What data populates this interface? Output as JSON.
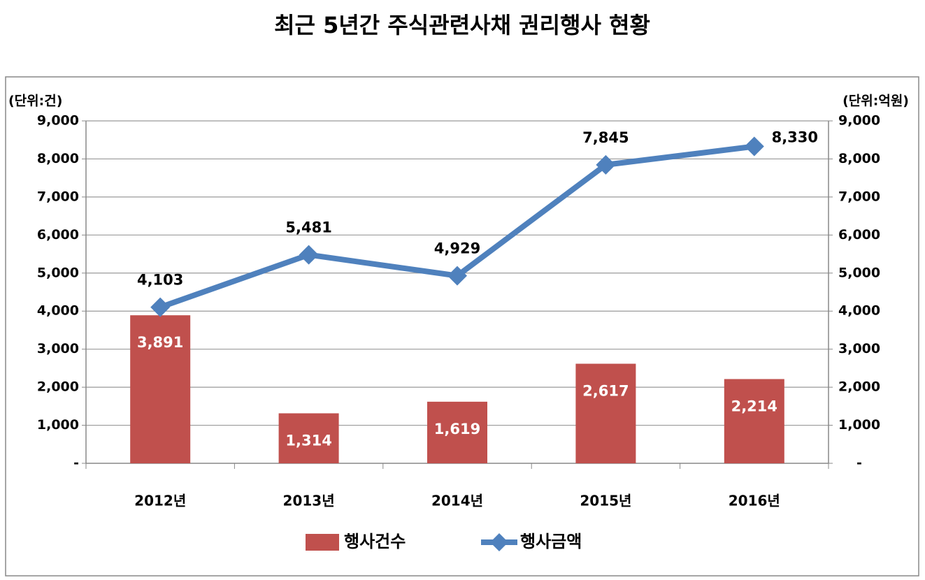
{
  "chart_data": {
    "type": "combo",
    "title": "최근 5년간 주식관련사채 권리행사 현황",
    "y_label": "(단위:건)",
    "y2_label": "(단위:억원)",
    "categories": [
      "2012년",
      "2013년",
      "2014년",
      "2015년",
      "2016년"
    ],
    "series": [
      {
        "name": "행사건수",
        "type": "bar",
        "color": "#c0504d",
        "axis": "y",
        "values": [
          3891,
          1314,
          1619,
          2617,
          2214
        ],
        "value_labels": [
          "3,891",
          "1,314",
          "1,619",
          "2,617",
          "2,214"
        ]
      },
      {
        "name": "행사금액",
        "type": "line",
        "color": "#4f81bd",
        "axis": "y2",
        "values": [
          4103,
          5481,
          4929,
          7845,
          8330
        ],
        "value_labels": [
          "4,103",
          "5,481",
          "4,929",
          "7,845",
          "8,330"
        ]
      }
    ],
    "ylim": [
      0,
      9000
    ],
    "yticks": [
      {
        "value": 0,
        "label": "-"
      },
      {
        "value": 1000,
        "label": "1,000"
      },
      {
        "value": 2000,
        "label": "2,000"
      },
      {
        "value": 3000,
        "label": "3,000"
      },
      {
        "value": 4000,
        "label": "4,000"
      },
      {
        "value": 5000,
        "label": "5,000"
      },
      {
        "value": 6000,
        "label": "6,000"
      },
      {
        "value": 7000,
        "label": "7,000"
      },
      {
        "value": 8000,
        "label": "8,000"
      },
      {
        "value": 9000,
        "label": "9,000"
      }
    ],
    "y2lim": [
      0,
      9000
    ],
    "y2ticks": [
      {
        "value": 0,
        "label": "-"
      },
      {
        "value": 1000,
        "label": "1,000"
      },
      {
        "value": 2000,
        "label": "2,000"
      },
      {
        "value": 3000,
        "label": "3,000"
      },
      {
        "value": 4000,
        "label": "4,000"
      },
      {
        "value": 5000,
        "label": "5,000"
      },
      {
        "value": 6000,
        "label": "6,000"
      },
      {
        "value": 7000,
        "label": "7,000"
      },
      {
        "value": 8000,
        "label": "8,000"
      },
      {
        "value": 9000,
        "label": "9,000"
      }
    ],
    "grid": true,
    "legend": "bottom"
  }
}
